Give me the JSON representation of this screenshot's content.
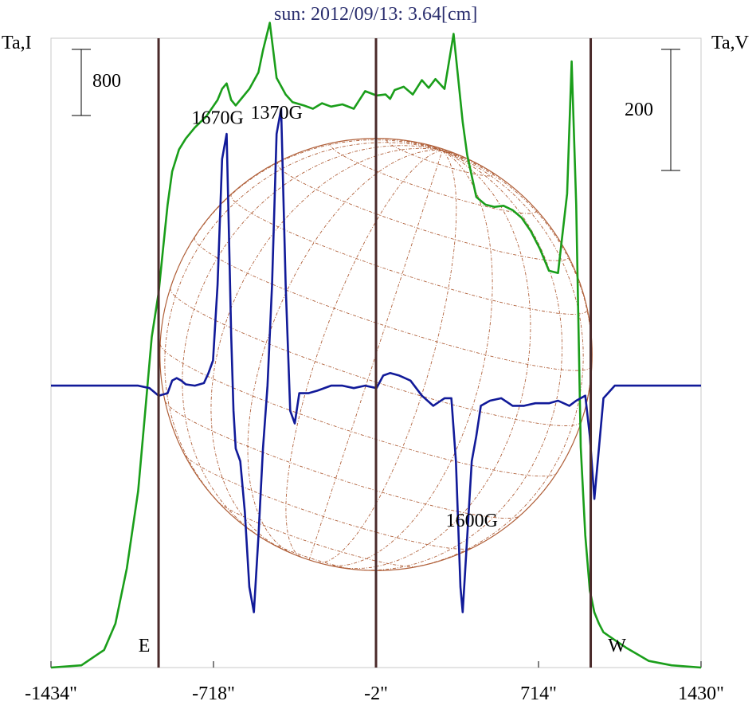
{
  "chart_data": {
    "type": "line",
    "title": "sun: 2012/09/13: 3.64[cm]",
    "left_axis_label": "Ta,I",
    "right_axis_label": "Ta,V",
    "scale_bars": {
      "left": "800",
      "right": "200"
    },
    "xlim": [
      -1434,
      1430
    ],
    "x_ticks": [
      {
        "value": -1434,
        "label": "-1434\""
      },
      {
        "value": -718,
        "label": "-718\""
      },
      {
        "value": -2,
        "label": "-2\""
      },
      {
        "value": 714,
        "label": "714\""
      },
      {
        "value": 1430,
        "label": "1430\""
      }
    ],
    "limb_markers": [
      {
        "value": -960,
        "label": "E"
      },
      {
        "value": -2,
        "label": ""
      },
      {
        "value": 944,
        "label": "W"
      }
    ],
    "annotations": [
      {
        "text": "1670G",
        "x": -700,
        "y": 1040
      },
      {
        "text": "1370G",
        "x": -440,
        "y": 1060
      },
      {
        "text": "1600G",
        "x": 420,
        "y": -560
      }
    ],
    "ylim_I": [
      0,
      5710
    ],
    "ylim_V": [
      -1120,
      1380
    ],
    "colors": {
      "I": "#1a9e1a",
      "V": "#111a99",
      "grid": "#b0603a",
      "limb": "#4a2a2a",
      "title": "#2a2e6e"
    },
    "series": [
      {
        "name": "I",
        "axis": "left",
        "x": [
          -1434,
          -1300,
          -1200,
          -1150,
          -1100,
          -1050,
          -1020,
          -990,
          -960,
          -940,
          -920,
          -900,
          -870,
          -840,
          -800,
          -750,
          -700,
          -680,
          -660,
          -640,
          -620,
          -600,
          -560,
          -520,
          -500,
          -470,
          -440,
          -400,
          -370,
          -320,
          -280,
          -240,
          -200,
          -150,
          -100,
          -50,
          0,
          40,
          60,
          80,
          120,
          160,
          200,
          230,
          260,
          300,
          340,
          380,
          400,
          440,
          480,
          520,
          560,
          600,
          640,
          680,
          720,
          760,
          800,
          840,
          860,
          880,
          900,
          920,
          940,
          960,
          980,
          1000,
          1050,
          1100,
          1150,
          1200,
          1300,
          1430
        ],
        "y": [
          0,
          20,
          160,
          400,
          900,
          1600,
          2300,
          3000,
          3400,
          3800,
          4200,
          4500,
          4700,
          4800,
          4900,
          5000,
          5150,
          5250,
          5300,
          5150,
          5100,
          5150,
          5250,
          5400,
          5600,
          5850,
          5350,
          5200,
          5130,
          5100,
          5070,
          5120,
          5090,
          5110,
          5070,
          5230,
          5190,
          5200,
          5160,
          5240,
          5270,
          5200,
          5330,
          5260,
          5340,
          5250,
          5750,
          4950,
          4650,
          4270,
          4200,
          4180,
          4190,
          4150,
          4080,
          3960,
          3800,
          3600,
          3580,
          4300,
          5500,
          4200,
          2000,
          1200,
          700,
          500,
          400,
          320,
          250,
          180,
          120,
          60,
          20,
          0
        ]
      },
      {
        "name": "V",
        "axis": "right",
        "x": [
          -1434,
          -1100,
          -1050,
          -1000,
          -960,
          -920,
          -900,
          -880,
          -860,
          -840,
          -800,
          -760,
          -740,
          -720,
          -700,
          -680,
          -660,
          -650,
          -640,
          -630,
          -620,
          -600,
          -580,
          -560,
          -540,
          -520,
          -500,
          -480,
          -460,
          -440,
          -420,
          -400,
          -380,
          -360,
          -340,
          -300,
          -260,
          -200,
          -150,
          -100,
          -50,
          0,
          30,
          60,
          100,
          150,
          200,
          250,
          300,
          330,
          350,
          370,
          380,
          400,
          420,
          440,
          460,
          500,
          550,
          600,
          650,
          700,
          760,
          800,
          850,
          880,
          920,
          940,
          960,
          980,
          1000,
          1050,
          1430
        ],
        "y": [
          0,
          0,
          0,
          -10,
          -40,
          -30,
          20,
          30,
          20,
          5,
          0,
          10,
          50,
          100,
          400,
          900,
          1000,
          600,
          200,
          -100,
          -250,
          -300,
          -500,
          -800,
          -900,
          -600,
          -250,
          0,
          400,
          1000,
          1100,
          400,
          -100,
          -150,
          -30,
          -30,
          -20,
          0,
          0,
          -10,
          0,
          -10,
          40,
          50,
          40,
          20,
          -40,
          -80,
          -50,
          -50,
          -300,
          -800,
          -900,
          -600,
          -300,
          -200,
          -80,
          -60,
          -50,
          -80,
          -80,
          -70,
          -70,
          -60,
          -80,
          -60,
          -40,
          -200,
          -450,
          -250,
          -50,
          0,
          0
        ]
      }
    ]
  }
}
